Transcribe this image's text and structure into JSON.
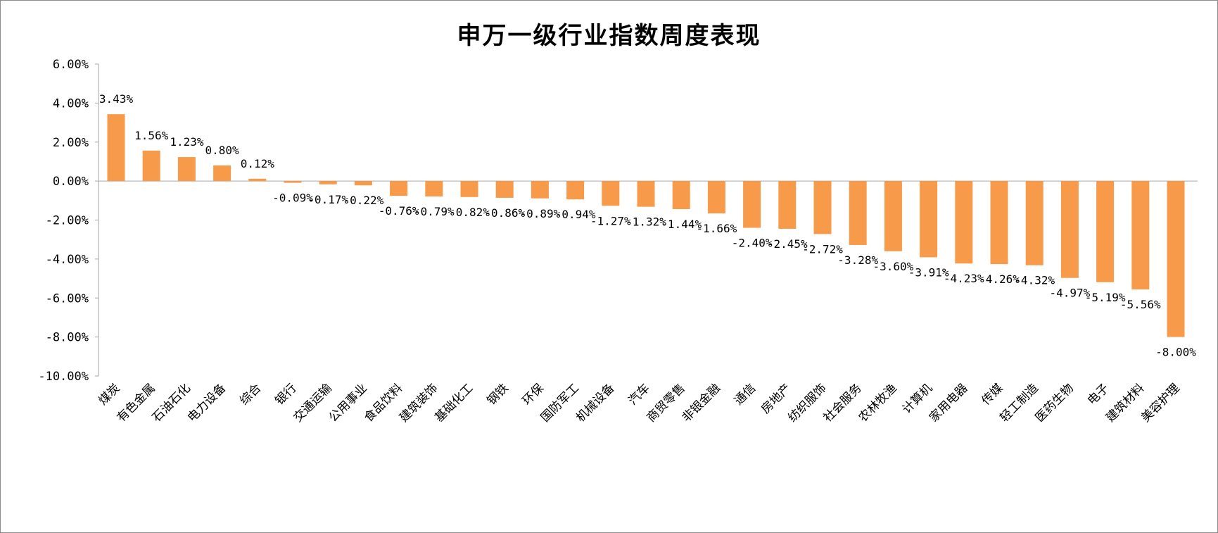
{
  "chart_data": {
    "type": "bar",
    "title": "申万一级行业指数周度表现",
    "xlabel": "",
    "ylabel": "",
    "ylim": [
      -10,
      6
    ],
    "y_ticks": [
      6,
      4,
      2,
      0,
      -2,
      -4,
      -6,
      -8,
      -10
    ],
    "y_tick_labels": [
      "6.00%",
      "4.00%",
      "2.00%",
      "0.00%",
      "-2.00%",
      "-4.00%",
      "-6.00%",
      "-8.00%",
      "-10.00%"
    ],
    "grid": false,
    "legend": "none",
    "bar_color": "#F79B4B",
    "categories": [
      "煤炭",
      "有色金属",
      "石油石化",
      "电力设备",
      "综合",
      "银行",
      "交通运输",
      "公用事业",
      "食品饮料",
      "建筑装饰",
      "基础化工",
      "钢铁",
      "环保",
      "国防军工",
      "机械设备",
      "汽车",
      "商贸零售",
      "非银金融",
      "通信",
      "房地产",
      "纺织服饰",
      "社会服务",
      "农林牧渔",
      "计算机",
      "家用电器",
      "传媒",
      "轻工制造",
      "医药生物",
      "电子",
      "建筑材料",
      "美容护理"
    ],
    "values": [
      3.43,
      1.56,
      1.23,
      0.8,
      0.12,
      -0.09,
      -0.17,
      -0.22,
      -0.76,
      -0.79,
      -0.82,
      -0.86,
      -0.89,
      -0.94,
      -1.27,
      -1.32,
      -1.44,
      -1.66,
      -2.4,
      -2.45,
      -2.72,
      -3.28,
      -3.6,
      -3.91,
      -4.23,
      -4.26,
      -4.32,
      -4.97,
      -5.19,
      -5.56,
      -8.0
    ],
    "data_labels": [
      "3.43%",
      "1.56%",
      "1.23%",
      "0.80%",
      "0.12%",
      "-0.09%",
      "-0.17%",
      "-0.22%",
      "-0.76%",
      "-0.79%",
      "-0.82%",
      "-0.86%",
      "-0.89%",
      "-0.94%",
      "-1.27%",
      "-1.32%",
      "-1.44%",
      "-1.66%",
      "-2.40%",
      "-2.45%",
      "-2.72%",
      "-3.28%",
      "-3.60%",
      "-3.91%",
      "-4.23%",
      "-4.26%",
      "-4.32%",
      "-4.97%",
      "-5.19%",
      "-5.56%",
      "-8.00%"
    ]
  }
}
